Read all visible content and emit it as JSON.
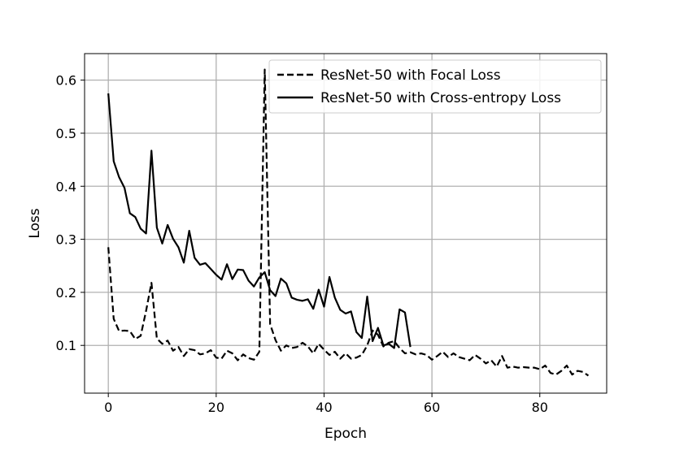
{
  "chart_data": {
    "type": "line",
    "title": "",
    "xlabel": "Epoch",
    "ylabel": "Loss",
    "xlim": [
      -4.4,
      92.4
    ],
    "ylim": [
      0.01,
      0.65
    ],
    "xticks": [
      0,
      20,
      40,
      60,
      80
    ],
    "yticks": [
      0.1,
      0.2,
      0.3,
      0.4,
      0.5,
      0.6
    ],
    "xtick_labels": [
      "0",
      "20",
      "40",
      "60",
      "80"
    ],
    "ytick_labels": [
      "0.1",
      "0.2",
      "0.3",
      "0.4",
      "0.5",
      "0.6"
    ],
    "grid": true,
    "legend_position": "top-right",
    "series": [
      {
        "name": "ResNet-50 with Focal Loss",
        "style": "dashed",
        "color": "#000000",
        "x": [
          0,
          1,
          2,
          3,
          4,
          5,
          6,
          7,
          8,
          9,
          10,
          11,
          12,
          13,
          14,
          15,
          16,
          17,
          18,
          19,
          20,
          21,
          22,
          23,
          24,
          25,
          26,
          27,
          28,
          29,
          30,
          31,
          32,
          33,
          34,
          35,
          36,
          37,
          38,
          39,
          40,
          41,
          42,
          43,
          44,
          45,
          46,
          47,
          48,
          49,
          50,
          51,
          52,
          53,
          54,
          55,
          56,
          57,
          58,
          59,
          60,
          61,
          62,
          63,
          64,
          65,
          66,
          67,
          68,
          69,
          70,
          71,
          72,
          73,
          74,
          75,
          76,
          77,
          78,
          79,
          80,
          81,
          82,
          83,
          84,
          85,
          86,
          87,
          88,
          89
        ],
        "y": [
          0.285,
          0.15,
          0.127,
          0.128,
          0.127,
          0.112,
          0.118,
          0.165,
          0.218,
          0.113,
          0.103,
          0.109,
          0.09,
          0.097,
          0.08,
          0.093,
          0.091,
          0.083,
          0.085,
          0.091,
          0.077,
          0.075,
          0.09,
          0.085,
          0.072,
          0.083,
          0.076,
          0.073,
          0.088,
          0.62,
          0.14,
          0.11,
          0.09,
          0.1,
          0.095,
          0.097,
          0.105,
          0.098,
          0.085,
          0.103,
          0.092,
          0.082,
          0.088,
          0.075,
          0.085,
          0.075,
          0.077,
          0.082,
          0.1,
          0.128,
          0.12,
          0.098,
          0.105,
          0.108,
          0.095,
          0.085,
          0.087,
          0.083,
          0.085,
          0.082,
          0.073,
          0.08,
          0.088,
          0.078,
          0.085,
          0.078,
          0.075,
          0.072,
          0.082,
          0.075,
          0.066,
          0.072,
          0.06,
          0.08,
          0.058,
          0.06,
          0.058,
          0.059,
          0.058,
          0.058,
          0.055,
          0.062,
          0.048,
          0.045,
          0.052,
          0.062,
          0.045,
          0.052,
          0.05,
          0.043
        ]
      },
      {
        "name": "ResNet-50 with Cross-entropy Loss",
        "style": "solid",
        "color": "#000000",
        "x": [
          0,
          1,
          2,
          3,
          4,
          5,
          6,
          7,
          8,
          9,
          10,
          11,
          12,
          13,
          14,
          15,
          16,
          17,
          18,
          19,
          20,
          21,
          22,
          23,
          24,
          25,
          26,
          27,
          28,
          29,
          30,
          31,
          32,
          33,
          34,
          35,
          36,
          37,
          38,
          39,
          40,
          41,
          42,
          43,
          44,
          45,
          46,
          47,
          48,
          49,
          50,
          51,
          52,
          53,
          54,
          55,
          56
        ],
        "y": [
          0.575,
          0.447,
          0.417,
          0.397,
          0.349,
          0.342,
          0.32,
          0.311,
          0.467,
          0.322,
          0.292,
          0.327,
          0.301,
          0.285,
          0.256,
          0.316,
          0.265,
          0.252,
          0.255,
          0.244,
          0.233,
          0.224,
          0.253,
          0.225,
          0.243,
          0.242,
          0.222,
          0.211,
          0.228,
          0.238,
          0.204,
          0.193,
          0.226,
          0.217,
          0.19,
          0.186,
          0.184,
          0.187,
          0.169,
          0.205,
          0.173,
          0.229,
          0.19,
          0.167,
          0.16,
          0.164,
          0.125,
          0.114,
          0.192,
          0.108,
          0.133,
          0.1,
          0.103,
          0.095,
          0.168,
          0.162,
          0.097
        ]
      }
    ]
  }
}
